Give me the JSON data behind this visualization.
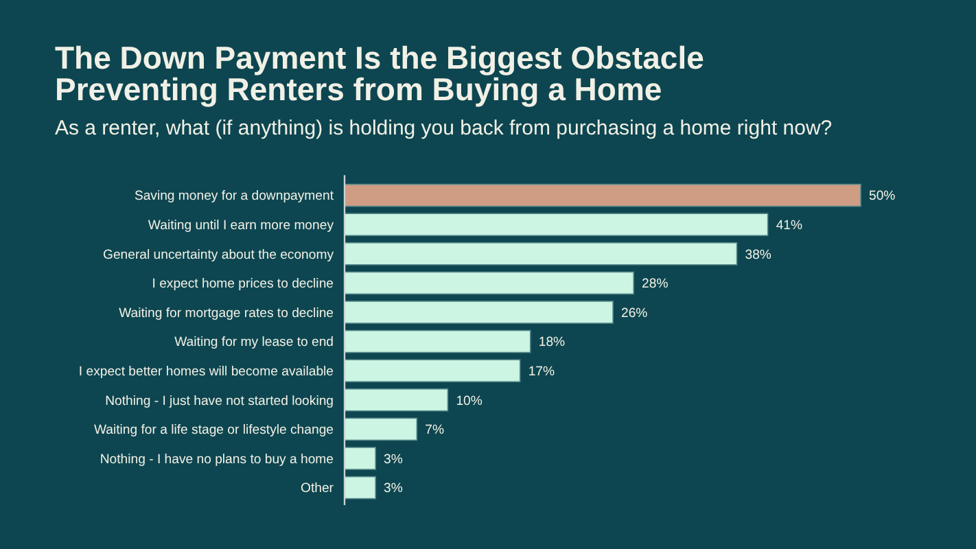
{
  "chart_data": {
    "type": "bar",
    "orientation": "horizontal",
    "title": "The Down Payment Is the Biggest Obstacle Preventing Renters from Buying a Home",
    "subtitle": "As a renter, what (if anything) is holding you back from purchasing a home right now?",
    "categories": [
      "Saving money for a downpayment",
      "Waiting until I earn more money",
      "General uncertainty about the economy",
      "I expect home prices to decline",
      "Waiting for mortgage rates to decline",
      "Waiting for my lease to end",
      "I expect better homes will become available",
      "Nothing - I just have not started looking",
      "Waiting for a life stage or lifestyle change",
      "Nothing - I have no plans to buy a home",
      "Other"
    ],
    "values": [
      50,
      41,
      38,
      28,
      26,
      18,
      17,
      10,
      7,
      3,
      3
    ],
    "colors": [
      "#cf9c84",
      "#ccf5e4",
      "#ccf5e4",
      "#ccf5e4",
      "#ccf5e4",
      "#ccf5e4",
      "#ccf5e4",
      "#ccf5e4",
      "#ccf5e4",
      "#ccf5e4",
      "#ccf5e4"
    ],
    "value_labels": [
      "50%",
      "41%",
      "38%",
      "28%",
      "26%",
      "18%",
      "17%",
      "10%",
      "7%",
      "3%",
      "3%"
    ],
    "xlim": [
      0,
      50
    ],
    "tick_labels": "y"
  }
}
